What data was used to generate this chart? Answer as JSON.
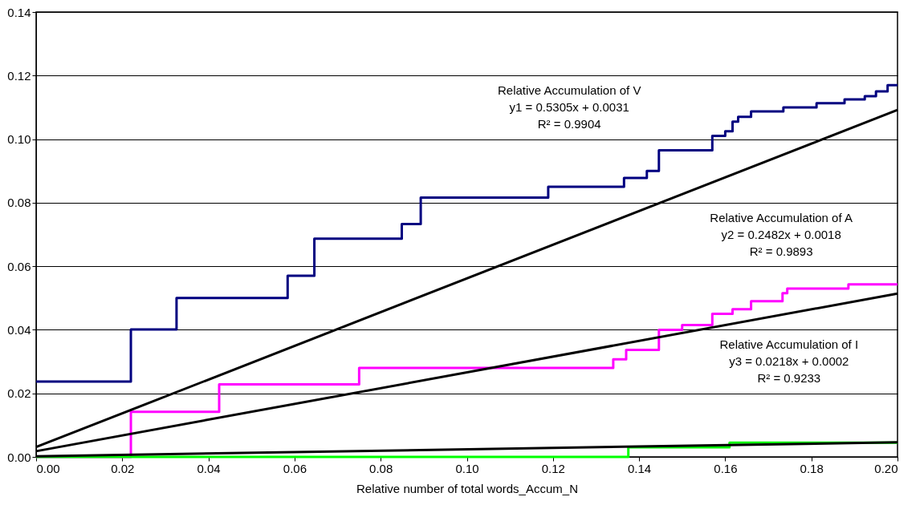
{
  "chart_data": {
    "type": "step",
    "xlabel": "Relative number of total words_Accum_N",
    "xlim": [
      0,
      0.2
    ],
    "xticks": [
      {
        "value": 0,
        "label": "0.00"
      },
      {
        "value": 0.02,
        "label": "0.02"
      },
      {
        "value": 0.04,
        "label": "0.04"
      },
      {
        "value": 0.06,
        "label": "0.06"
      },
      {
        "value": 0.08,
        "label": "0.08"
      },
      {
        "value": 0.1,
        "label": "0.10"
      },
      {
        "value": 0.12,
        "label": "0.12"
      },
      {
        "value": 0.14,
        "label": "0.14"
      },
      {
        "value": 0.16,
        "label": "0.16"
      },
      {
        "value": 0.18,
        "label": "0.18"
      },
      {
        "value": 0.2,
        "label": "0.20"
      }
    ],
    "ylim": [
      0,
      0.14
    ],
    "yticks": [
      {
        "value": 0,
        "label": "0.00"
      },
      {
        "value": 0.02,
        "label": "0.02"
      },
      {
        "value": 0.04,
        "label": "0.04"
      },
      {
        "value": 0.06,
        "label": "0.06"
      },
      {
        "value": 0.08,
        "label": "0.08"
      },
      {
        "value": 0.1,
        "label": "0.10"
      },
      {
        "value": 0.12,
        "label": "0.12"
      },
      {
        "value": 0.14,
        "label": "0.14"
      }
    ],
    "grid": "y",
    "legend": false,
    "marker": "none",
    "series": [
      {
        "type": "step",
        "color": "#000080",
        "x": [
          0,
          0.022,
          0.0326,
          0.0584,
          0.0646,
          0.0849,
          0.0893,
          0.1189,
          0.1365,
          0.1418,
          0.1446,
          0.157,
          0.16,
          0.1617,
          0.163,
          0.166,
          0.1735,
          0.1812,
          0.1877,
          0.1924,
          0.195,
          0.1977,
          0.2
        ],
        "values": [
          0.0237,
          0.0401,
          0.05,
          0.057,
          0.0687,
          0.0733,
          0.0816,
          0.085,
          0.0878,
          0.09,
          0.0965,
          0.101,
          0.1025,
          0.1055,
          0.107,
          0.1087,
          0.11,
          0.1113,
          0.1125,
          0.1135,
          0.115,
          0.117,
          0.117
        ]
      },
      {
        "type": "step",
        "color": "#ff00ff",
        "x": [
          0,
          0.022,
          0.0425,
          0.075,
          0.134,
          0.137,
          0.1446,
          0.15,
          0.157,
          0.1617,
          0.166,
          0.1733,
          0.1744,
          0.1886,
          0.2
        ],
        "values": [
          0,
          0.0142,
          0.0228,
          0.028,
          0.0307,
          0.0337,
          0.04,
          0.0415,
          0.045,
          0.0465,
          0.049,
          0.0515,
          0.053,
          0.0543,
          0.0543
        ]
      },
      {
        "type": "step",
        "color": "#00ff00",
        "x": [
          0,
          0.1375,
          0.161,
          0.2
        ],
        "values": [
          0,
          0.003,
          0.0045,
          0.0045
        ]
      },
      {
        "type": "line",
        "color": "#000000",
        "x": [
          0,
          0.2
        ],
        "values": [
          0.0031,
          0.1092
        ]
      },
      {
        "type": "line",
        "color": "#000000",
        "x": [
          0,
          0.2
        ],
        "values": [
          0.0018,
          0.0514
        ]
      },
      {
        "type": "line",
        "color": "#000000",
        "x": [
          0,
          0.2
        ],
        "values": [
          0.0002,
          0.0046
        ]
      }
    ],
    "annotations": [
      "Relative Accumulation of V\ny1 = 0.5305x + 0.0031\nR² = 0.9904",
      "Relative Accumulation of A\ny2 = 0.2482x + 0.0018\nR² = 0.9893",
      "Relative Accumulation of I\ny3 = 0.0218x + 0.0002\nR² = 0.9233"
    ]
  }
}
